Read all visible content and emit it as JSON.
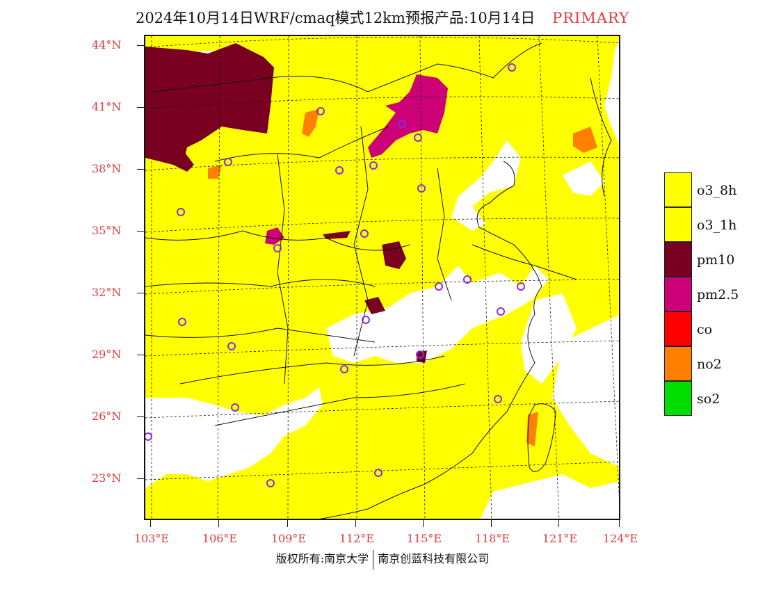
{
  "title": {
    "main": "2024年10月14日WRF/cmaq模式12km预报产品:10月14日",
    "tag": "PRIMARY"
  },
  "map": {
    "latitude_labels": [
      "44°N",
      "41°N",
      "38°N",
      "35°N",
      "32°N",
      "29°N",
      "26°N",
      "23°N"
    ],
    "longitude_labels": [
      "103°E",
      "106°E",
      "109°E",
      "112°E",
      "115°E",
      "118°E",
      "121°E",
      "124°E"
    ],
    "predominant_pollutant_colors": {
      "o3_8h": "#ffff00",
      "pm10": "#7a0022",
      "pm2_5": "#cc0077",
      "no2": "#ff7f00",
      "no_data": "#ffffff",
      "station_marker": "#8a2be2"
    }
  },
  "legend": {
    "items": [
      {
        "label": "o3_8h",
        "color": "#ffff00"
      },
      {
        "label": "o3_1h",
        "color": "#ffff00"
      },
      {
        "label": "pm10",
        "color": "#7a0022"
      },
      {
        "label": "pm2.5",
        "color": "#cc0077"
      },
      {
        "label": "co",
        "color": "#ff0000"
      },
      {
        "label": "no2",
        "color": "#ff7f00"
      },
      {
        "label": "so2",
        "color": "#00dd00"
      }
    ]
  },
  "footer": {
    "left": "版权所有:南京大学",
    "right": "南京创蓝科技有限公司"
  }
}
